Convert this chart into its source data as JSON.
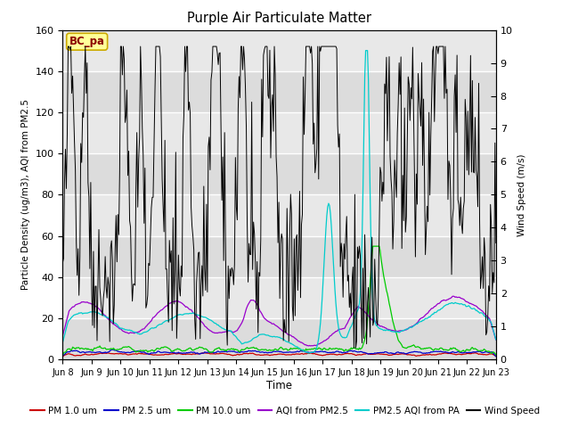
{
  "title": "Purple Air Particulate Matter",
  "xlabel": "Time",
  "ylabel_left": "Particle Density (ug/m3), AQI from PM2.5",
  "ylabel_right": "Wind Speed (m/s)",
  "ylim_left": [
    0,
    160
  ],
  "ylim_right": [
    0,
    10.0
  ],
  "annotation_text": "BC_pa",
  "annotation_color": "#8B0000",
  "annotation_bg": "#FFFF99",
  "annotation_border": "#CCAA00",
  "xtick_labels": [
    "Jun 8",
    "Jun 9",
    "Jun 10",
    "Jun 11",
    "Jun 12",
    "Jun 13",
    "Jun 14",
    "Jun 15",
    "Jun 16",
    "Jun 17",
    "Jun 18",
    "Jun 19",
    "Jun 20",
    "Jun 21",
    "Jun 22",
    "Jun 23"
  ],
  "plot_bg_light": "#DCDCDC",
  "plot_bg_dark": "#E8E8E8",
  "fig_bg": "#FFFFFF",
  "n_points": 480,
  "seed": 42
}
